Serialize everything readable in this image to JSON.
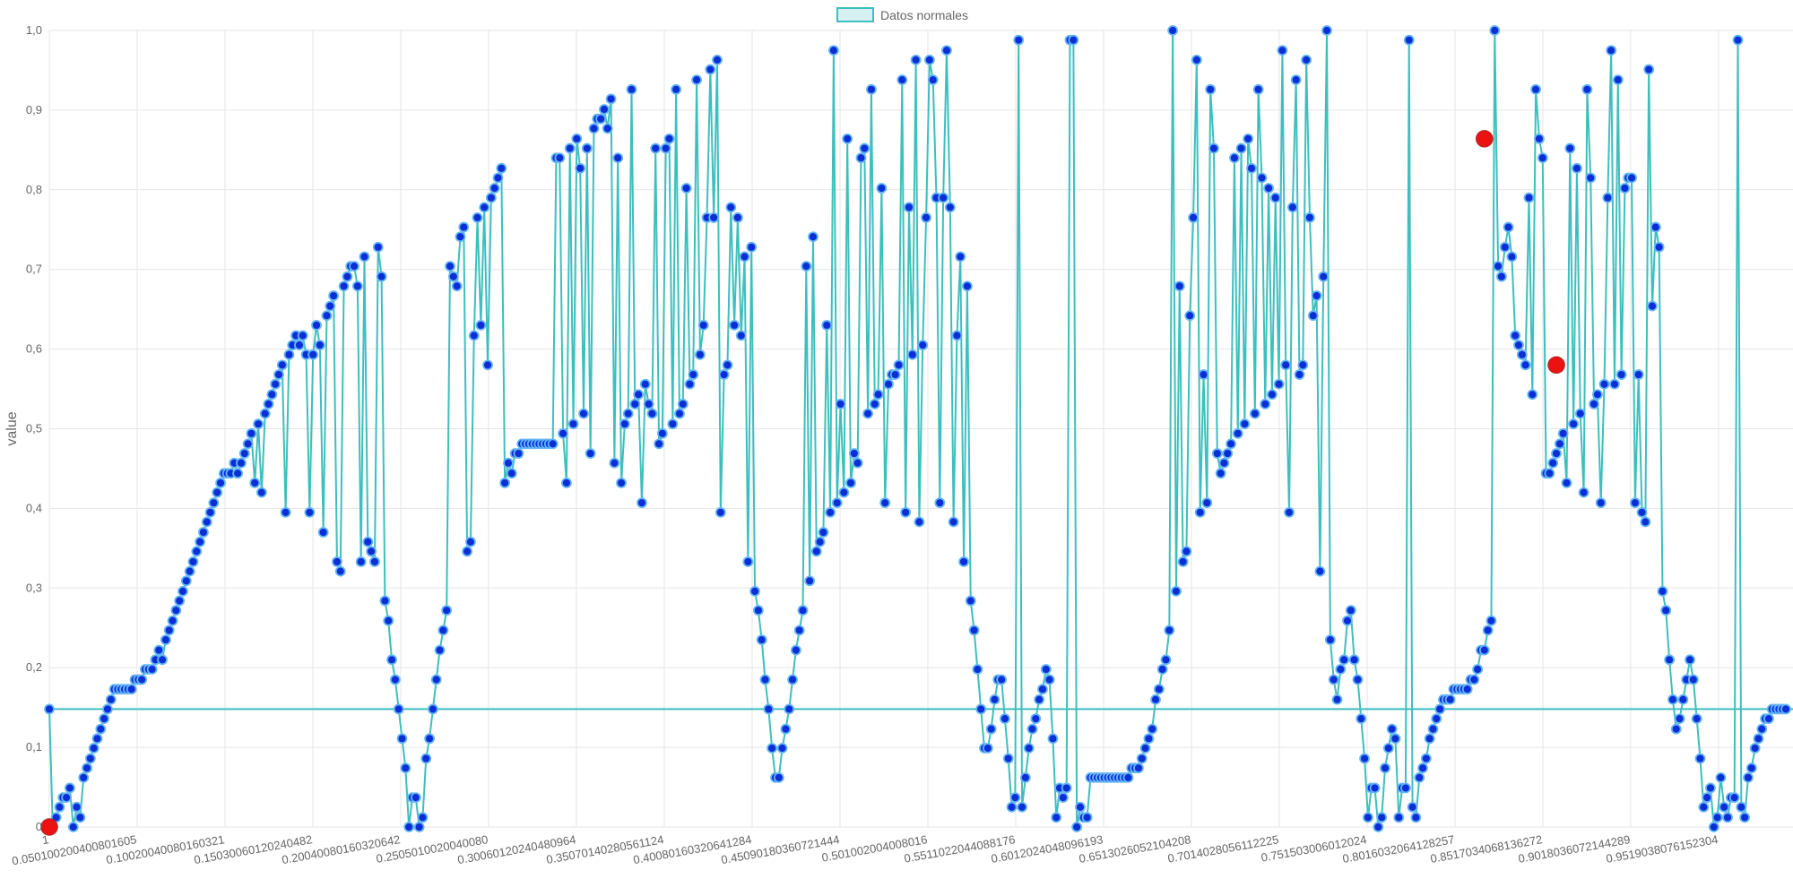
{
  "chart_data": {
    "type": "line",
    "ylabel": "value",
    "ylim": [
      0,
      1.0
    ],
    "yticks": [
      "0",
      "0,1",
      "0,2",
      "0,3",
      "0,4",
      "0,5",
      "0,6",
      "0,7",
      "0,8",
      "0,9",
      "1,0"
    ],
    "xticks": [
      "1",
      "0.0501002004008016​05",
      "0.10020040080160321",
      "0.15030060120240482",
      "0.20040080160320642",
      "0.2505010020040080",
      "0.30060120240480964",
      "0.35070140280561124",
      "0.40080160320641284",
      "0.45090180360721444",
      "0.501002004008016",
      "0.5511022044088176",
      "0.6012024048096193",
      "0.6513026052104208",
      "0.7014028056112225",
      "0.751503006012024",
      "0.8016032064128257",
      "0.8517034068136272",
      "0.9018036072144289",
      "0.9519038076152304"
    ],
    "legend": {
      "label": "Datos normales",
      "position": "top-center"
    },
    "grid": true,
    "colors": {
      "line": "#3dbfbd",
      "point_fill": "#0b2fd6",
      "point_border": "#64b5f6",
      "anomaly": "#ee1111",
      "legend_fill": "#d6f1f1"
    },
    "threshold": 0.148,
    "series": [
      {
        "name": "Datos normales",
        "values": [
          0.148,
          0.0,
          0.012,
          0.025,
          0.037,
          0.037,
          0.049,
          0.0,
          0.025,
          0.012,
          0.062,
          0.074,
          0.086,
          0.099,
          0.111,
          0.123,
          0.136,
          0.148,
          0.16,
          0.173,
          0.173,
          0.173,
          0.173,
          0.173,
          0.173,
          0.185,
          0.185,
          0.185,
          0.198,
          0.198,
          0.198,
          0.21,
          0.222,
          0.21,
          0.235,
          0.247,
          0.259,
          0.272,
          0.284,
          0.296,
          0.309,
          0.321,
          0.333,
          0.346,
          0.358,
          0.37,
          0.383,
          0.395,
          0.407,
          0.42,
          0.432,
          0.444,
          0.444,
          0.444,
          0.457,
          0.444,
          0.457,
          0.469,
          0.481,
          0.494,
          0.432,
          0.506,
          0.42,
          0.519,
          0.531,
          0.543,
          0.556,
          0.568,
          0.58,
          0.395,
          0.593,
          0.605,
          0.617,
          0.605,
          0.617,
          0.593,
          0.395,
          0.593,
          0.63,
          0.605,
          0.37,
          0.642,
          0.654,
          0.667,
          0.333,
          0.321,
          0.679,
          0.691,
          0.704,
          0.704,
          0.679,
          0.333,
          0.716,
          0.358,
          0.346,
          0.333,
          0.728,
          0.691,
          0.284,
          0.259,
          0.21,
          0.185,
          0.148,
          0.111,
          0.074,
          0.0,
          0.037,
          0.037,
          0.0,
          0.012,
          0.086,
          0.111,
          0.148,
          0.185,
          0.222,
          0.247,
          0.272,
          0.704,
          0.691,
          0.679,
          0.741,
          0.753,
          0.346,
          0.358,
          0.617,
          0.765,
          0.63,
          0.778,
          0.58,
          0.79,
          0.802,
          0.815,
          0.827,
          0.432,
          0.457,
          0.444,
          0.469,
          0.469,
          0.481,
          0.481,
          0.481,
          0.481,
          0.481,
          0.481,
          0.481,
          0.481,
          0.481,
          0.481,
          0.84,
          0.84,
          0.494,
          0.432,
          0.852,
          0.506,
          0.864,
          0.827,
          0.519,
          0.852,
          0.469,
          0.877,
          0.889,
          0.889,
          0.901,
          0.877,
          0.914,
          0.457,
          0.84,
          0.432,
          0.506,
          0.519,
          0.926,
          0.531,
          0.543,
          0.407,
          0.556,
          0.531,
          0.519,
          0.852,
          0.481,
          0.494,
          0.852,
          0.864,
          0.506,
          0.926,
          0.519,
          0.531,
          0.802,
          0.556,
          0.568,
          0.938,
          0.593,
          0.63,
          0.765,
          0.951,
          0.765,
          0.963,
          0.395,
          0.568,
          0.58,
          0.778,
          0.63,
          0.765,
          0.617,
          0.716,
          0.333,
          0.728,
          0.296,
          0.272,
          0.235,
          0.185,
          0.148,
          0.099,
          0.062,
          0.062,
          0.099,
          0.123,
          0.148,
          0.185,
          0.222,
          0.247,
          0.272,
          0.704,
          0.309,
          0.741,
          0.346,
          0.358,
          0.37,
          0.63,
          0.395,
          0.975,
          0.407,
          0.531,
          0.42,
          0.864,
          0.432,
          0.469,
          0.457,
          0.84,
          0.852,
          0.519,
          0.926,
          0.531,
          0.543,
          0.802,
          0.407,
          0.556,
          0.568,
          0.568,
          0.58,
          0.938,
          0.395,
          0.778,
          0.593,
          0.963,
          0.383,
          0.605,
          0.765,
          0.963,
          0.938,
          0.79,
          0.407,
          0.79,
          0.975,
          0.778,
          0.383,
          0.617,
          0.716,
          0.333,
          0.679,
          0.284,
          0.247,
          0.198,
          0.148,
          0.099,
          0.099,
          0.123,
          0.16,
          0.185,
          0.185,
          0.136,
          0.086,
          0.025,
          0.037,
          0.988,
          0.025,
          0.062,
          0.099,
          0.123,
          0.136,
          0.16,
          0.173,
          0.198,
          0.185,
          0.111,
          0.012,
          0.049,
          0.037,
          0.049,
          0.988,
          0.988,
          0.0,
          0.025,
          0.012,
          0.012,
          0.062,
          0.062,
          0.062,
          0.062,
          0.062,
          0.062,
          0.062,
          0.062,
          0.062,
          0.062,
          0.062,
          0.062,
          0.074,
          0.074,
          0.074,
          0.086,
          0.099,
          0.111,
          0.123,
          0.16,
          0.173,
          0.198,
          0.21,
          0.247,
          1.0,
          0.296,
          0.679,
          0.333,
          0.346,
          0.642,
          0.765,
          0.963,
          0.395,
          0.568,
          0.407,
          0.926,
          0.852,
          0.469,
          0.444,
          0.457,
          0.469,
          0.481,
          0.84,
          0.494,
          0.852,
          0.506,
          0.864,
          0.827,
          0.519,
          0.926,
          0.815,
          0.531,
          0.802,
          0.543,
          0.79,
          0.556,
          0.975,
          0.58,
          0.395,
          0.778,
          0.938,
          0.568,
          0.58,
          0.963,
          0.765,
          0.642,
          0.667,
          0.321,
          0.691,
          1.0,
          0.235,
          0.185,
          0.16,
          0.198,
          0.21,
          0.259,
          0.272,
          0.21,
          0.185,
          0.136,
          0.086,
          0.012,
          0.049,
          0.049,
          0.0,
          0.012,
          0.074,
          0.099,
          0.123,
          0.111,
          0.012,
          0.049,
          0.049,
          0.988,
          0.025,
          0.012,
          0.062,
          0.074,
          0.086,
          0.111,
          0.123,
          0.136,
          0.148,
          0.16,
          0.16,
          0.16,
          0.173,
          0.173,
          0.173,
          0.173,
          0.173,
          0.185,
          0.185,
          0.198,
          0.222,
          0.222,
          0.247,
          0.259,
          1.0,
          0.704,
          0.691,
          0.728,
          0.753,
          0.716,
          0.617,
          0.605,
          0.593,
          0.58,
          0.79,
          0.543,
          0.926,
          0.864,
          0.84,
          0.444,
          0.444,
          0.457,
          0.469,
          0.481,
          0.494,
          0.432,
          0.852,
          0.506,
          0.827,
          0.519,
          0.42,
          0.926,
          0.815,
          0.531,
          0.543,
          0.407,
          0.556,
          0.79,
          0.975,
          0.556,
          0.938,
          0.568,
          0.802,
          0.815,
          0.815,
          0.407,
          0.568,
          0.395,
          0.383,
          0.951,
          0.654,
          0.753,
          0.728,
          0.296,
          0.272,
          0.21,
          0.16,
          0.123,
          0.136,
          0.16,
          0.185,
          0.21,
          0.185,
          0.136,
          0.086,
          0.025,
          0.037,
          0.049,
          0.0,
          0.012,
          0.062,
          0.025,
          0.012,
          0.037,
          0.037,
          0.988,
          0.025,
          0.012,
          0.062,
          0.074,
          0.099,
          0.111,
          0.123,
          0.136,
          0.136,
          0.148,
          0.148,
          0.148,
          0.148,
          0.148
        ]
      }
    ],
    "anomalies": [
      {
        "index": 0,
        "value": 0.0
      },
      {
        "index": 419,
        "value": 0.864
      },
      {
        "index": 440,
        "value": 0.58
      }
    ]
  }
}
